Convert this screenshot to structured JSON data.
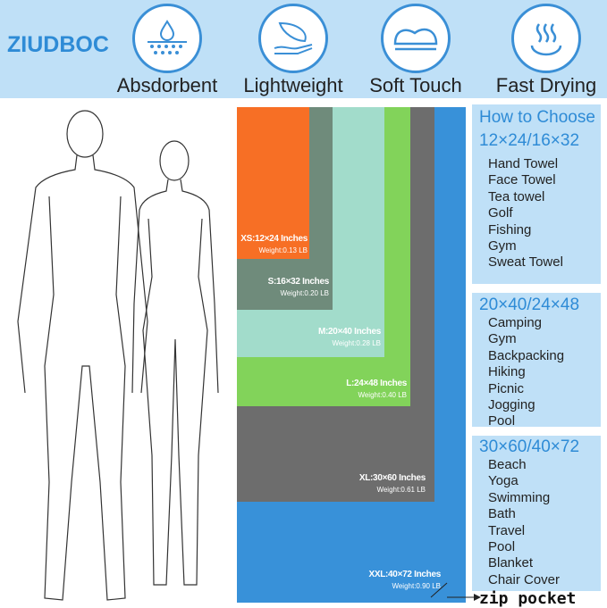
{
  "brand": "ZIUDBOC",
  "features": [
    {
      "label": "Absdorbent",
      "icon": "water-drop-icon"
    },
    {
      "label": "Lightweight",
      "icon": "feather-hand-icon"
    },
    {
      "label": "Soft Touch",
      "icon": "pillow-icon"
    },
    {
      "label": "Fast Drying",
      "icon": "steam-icon"
    }
  ],
  "sizes": [
    {
      "size": "XXL:40×72 Inches",
      "weight": "Weight:0.90 LB",
      "color": "#3891d9"
    },
    {
      "size": "XL:30×60 Inches",
      "weight": "Weight:0.61 LB",
      "color": "#6d6d6d"
    },
    {
      "size": "L:24×48 Inches",
      "weight": "Weight:0.40 LB",
      "color": "#82d35a"
    },
    {
      "size": "M:20×40 Inches",
      "weight": "Weight:0.28 LB",
      "color": "#a2dccb"
    },
    {
      "size": "S:16×32 Inches",
      "weight": "Weight:0.20 LB",
      "color": "#6f8b7b"
    },
    {
      "size": "XS:12×24 Inches",
      "weight": "Weight:0.13 LB",
      "color": "#f76f25"
    }
  ],
  "guide": {
    "title": "How to Choose",
    "groups": [
      {
        "heading": "12×24/16×32",
        "items": [
          "Hand Towel",
          "Face Towel",
          "Tea towel",
          "Golf",
          "Fishing",
          "Gym",
          "Sweat Towel"
        ]
      },
      {
        "heading": "20×40/24×48",
        "items": [
          "Camping",
          "Gym",
          "Backpacking",
          "Hiking",
          "Picnic",
          "Jogging",
          "Pool"
        ]
      },
      {
        "heading": "30×60/40×72",
        "items": [
          "Beach",
          "Yoga",
          "Swimming",
          "Bath",
          "Travel",
          "Pool",
          "Blanket",
          "Chair Cover"
        ]
      }
    ]
  },
  "zip_label": "zip pocket"
}
